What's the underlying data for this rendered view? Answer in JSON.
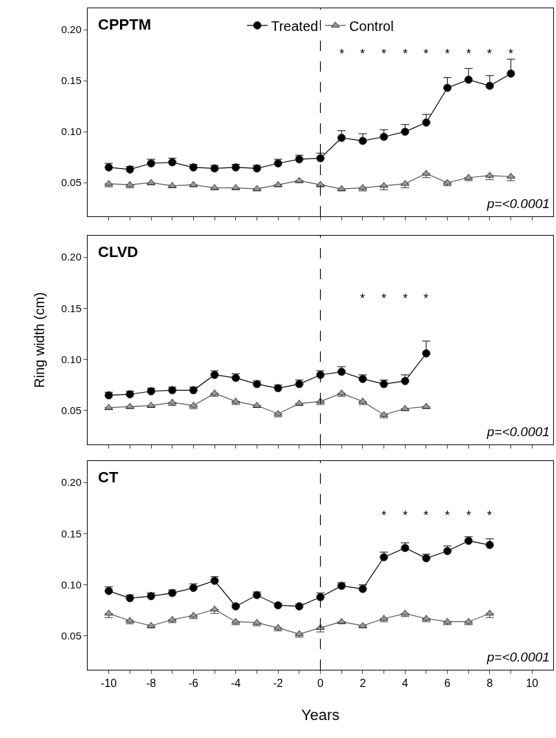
{
  "chart_data": [
    {
      "type": "line",
      "title": "CPPTM",
      "x": [
        -10,
        -9,
        -8,
        -7,
        -6,
        -5,
        -4,
        -3,
        -2,
        -1,
        0,
        1,
        2,
        3,
        4,
        5,
        6,
        7,
        8,
        9
      ],
      "xlim": [
        -11,
        11
      ],
      "ylim": [
        0.017,
        0.221
      ],
      "legend": "top",
      "tick_labels": "y",
      "xticks": [
        {
          "value": -10,
          "label": null
        },
        {
          "value": -9,
          "label": null
        },
        {
          "value": -8,
          "label": null
        },
        {
          "value": -7,
          "label": null
        },
        {
          "value": -6,
          "label": null
        },
        {
          "value": -5,
          "label": null
        },
        {
          "value": -4,
          "label": null
        },
        {
          "value": -3,
          "label": null
        },
        {
          "value": -2,
          "label": null
        },
        {
          "value": -1,
          "label": null
        },
        {
          "value": 0,
          "label": null
        },
        {
          "value": 1,
          "label": null
        },
        {
          "value": 2,
          "label": null
        },
        {
          "value": 3,
          "label": null
        },
        {
          "value": 4,
          "label": null
        },
        {
          "value": 5,
          "label": null
        },
        {
          "value": 6,
          "label": null
        },
        {
          "value": 7,
          "label": null
        },
        {
          "value": 8,
          "label": null
        },
        {
          "value": 9,
          "label": null
        },
        {
          "value": 10,
          "label": null
        }
      ],
      "yticks": [
        {
          "value": 0.05,
          "label": "0.05"
        },
        {
          "value": 0.1,
          "label": "0.10"
        },
        {
          "value": 0.15,
          "label": "0.15"
        },
        {
          "value": 0.2,
          "label": "0.20"
        }
      ],
      "ref_lines": [
        {
          "axis": "x",
          "value": 0,
          "line_style": "dashed",
          "color": "#000000"
        }
      ],
      "series": [
        {
          "name": "Treated",
          "color": "#000000",
          "marker": "circle",
          "values": [
            0.065,
            0.063,
            0.069,
            0.07,
            0.065,
            0.064,
            0.065,
            0.064,
            0.069,
            0.073,
            0.074,
            0.094,
            0.091,
            0.095,
            0.1,
            0.109,
            0.143,
            0.151,
            0.145,
            0.157
          ],
          "errors": [
            [
              0.065,
              0.069
            ],
            [
              0.063,
              0.066
            ],
            [
              0.069,
              0.073
            ],
            [
              0.07,
              0.074
            ],
            [
              0.065,
              0.068
            ],
            [
              0.064,
              0.067
            ],
            [
              0.065,
              0.068
            ],
            [
              0.064,
              0.067
            ],
            [
              0.069,
              0.073
            ],
            [
              0.073,
              0.077
            ],
            [
              0.074,
              0.079
            ],
            [
              0.094,
              0.101
            ],
            [
              0.091,
              0.098
            ],
            [
              0.095,
              0.102
            ],
            [
              0.1,
              0.107
            ],
            [
              0.109,
              0.117
            ],
            [
              0.143,
              0.153
            ],
            [
              0.151,
              0.162
            ],
            [
              0.145,
              0.155
            ],
            [
              0.157,
              0.171
            ]
          ]
        },
        {
          "name": "Control",
          "color": "#999999",
          "marker": "triangle",
          "values": [
            0.049,
            0.048,
            0.05,
            0.047,
            0.048,
            0.045,
            0.045,
            0.044,
            0.048,
            0.052,
            0.048,
            0.044,
            0.045,
            0.047,
            0.049,
            0.059,
            0.05,
            0.055,
            0.057,
            0.056
          ],
          "errors": [
            [
              0.046,
              0.049
            ],
            [
              0.045,
              0.048
            ],
            [
              0.048,
              0.05
            ],
            [
              0.045,
              0.047
            ],
            [
              0.046,
              0.048
            ],
            [
              0.043,
              0.045
            ],
            [
              0.043,
              0.045
            ],
            [
              0.042,
              0.044
            ],
            [
              0.046,
              0.048
            ],
            [
              0.05,
              0.052
            ],
            [
              0.046,
              0.048
            ],
            [
              0.042,
              0.044
            ],
            [
              0.042,
              0.045
            ],
            [
              0.043,
              0.047
            ],
            [
              0.045,
              0.049
            ],
            [
              0.055,
              0.059
            ],
            [
              0.047,
              0.05
            ],
            [
              0.052,
              0.055
            ],
            [
              0.053,
              0.057
            ],
            [
              0.052,
              0.056
            ]
          ]
        }
      ],
      "annotations": [
        "*",
        "*",
        "*",
        "*",
        "*",
        "*",
        "*",
        "*",
        "*",
        "p=<0.0001"
      ]
    },
    {
      "type": "line",
      "title": "CLVD",
      "ylabel": "Ring width (cm)",
      "x": [
        -10,
        -9,
        -8,
        -7,
        -6,
        -5,
        -4,
        -3,
        -2,
        -1,
        0,
        1,
        2,
        3,
        4,
        5
      ],
      "xlim": [
        -11,
        11
      ],
      "ylim": [
        0.017,
        0.221
      ],
      "tick_labels": "y",
      "xticks": [
        {
          "value": -10,
          "label": null
        },
        {
          "value": -9,
          "label": null
        },
        {
          "value": -8,
          "label": null
        },
        {
          "value": -7,
          "label": null
        },
        {
          "value": -6,
          "label": null
        },
        {
          "value": -5,
          "label": null
        },
        {
          "value": -4,
          "label": null
        },
        {
          "value": -3,
          "label": null
        },
        {
          "value": -2,
          "label": null
        },
        {
          "value": -1,
          "label": null
        },
        {
          "value": 0,
          "label": null
        },
        {
          "value": 1,
          "label": null
        },
        {
          "value": 2,
          "label": null
        },
        {
          "value": 3,
          "label": null
        },
        {
          "value": 4,
          "label": null
        },
        {
          "value": 5,
          "label": null
        },
        {
          "value": 6,
          "label": null
        },
        {
          "value": 7,
          "label": null
        },
        {
          "value": 8,
          "label": null
        },
        {
          "value": 9,
          "label": null
        },
        {
          "value": 10,
          "label": null
        }
      ],
      "yticks": [
        {
          "value": 0.05,
          "label": "0.05"
        },
        {
          "value": 0.1,
          "label": "0.10"
        },
        {
          "value": 0.15,
          "label": "0.15"
        },
        {
          "value": 0.2,
          "label": "0.20"
        }
      ],
      "ref_lines": [
        {
          "axis": "x",
          "value": 0,
          "line_style": "dashed",
          "color": "#000000"
        }
      ],
      "series": [
        {
          "color": "#000000",
          "marker": "circle",
          "values": [
            0.065,
            0.066,
            0.069,
            0.07,
            0.07,
            0.085,
            0.082,
            0.076,
            0.072,
            0.076,
            0.085,
            0.088,
            0.081,
            0.076,
            0.079,
            0.106
          ],
          "errors": [
            [
              0.065,
              0.068
            ],
            [
              0.066,
              0.069
            ],
            [
              0.069,
              0.072
            ],
            [
              0.07,
              0.073
            ],
            [
              0.07,
              0.073
            ],
            [
              0.085,
              0.089
            ],
            [
              0.082,
              0.086
            ],
            [
              0.076,
              0.079
            ],
            [
              0.072,
              0.075
            ],
            [
              0.076,
              0.08
            ],
            [
              0.085,
              0.089
            ],
            [
              0.088,
              0.093
            ],
            [
              0.081,
              0.085
            ],
            [
              0.076,
              0.08
            ],
            [
              0.079,
              0.085
            ],
            [
              0.106,
              0.118
            ]
          ]
        },
        {
          "color": "#999999",
          "marker": "triangle",
          "values": [
            0.053,
            0.054,
            0.055,
            0.058,
            0.055,
            0.067,
            0.059,
            0.055,
            0.047,
            0.057,
            0.059,
            0.067,
            0.059,
            0.046,
            0.052,
            0.054
          ],
          "errors": [
            [
              0.051,
              0.053
            ],
            [
              0.052,
              0.054
            ],
            [
              0.053,
              0.055
            ],
            [
              0.055,
              0.058
            ],
            [
              0.052,
              0.055
            ],
            [
              0.064,
              0.067
            ],
            [
              0.056,
              0.059
            ],
            [
              0.053,
              0.055
            ],
            [
              0.044,
              0.047
            ],
            [
              0.055,
              0.057
            ],
            [
              0.056,
              0.059
            ],
            [
              0.064,
              0.067
            ],
            [
              0.056,
              0.059
            ],
            [
              0.043,
              0.046
            ],
            [
              0.05,
              0.052
            ],
            [
              0.052,
              0.054
            ]
          ]
        }
      ],
      "annotations": [
        "*",
        "*",
        "*",
        "*",
        "p=<0.0001"
      ]
    },
    {
      "type": "line",
      "title": "CT",
      "xlabel": "Years",
      "x": [
        -10,
        -9,
        -8,
        -7,
        -6,
        -5,
        -4,
        -3,
        -2,
        -1,
        0,
        1,
        2,
        3,
        4,
        5,
        6,
        7,
        8
      ],
      "xlim": [
        -11,
        11
      ],
      "ylim": [
        0.017,
        0.221
      ],
      "xticks": [
        -10,
        {
          "value": -9,
          "label": null
        },
        -8,
        {
          "value": -7,
          "label": null
        },
        -6,
        {
          "value": -5,
          "label": null
        },
        -4,
        {
          "value": -3,
          "label": null
        },
        -2,
        {
          "value": -1,
          "label": null
        },
        0,
        {
          "value": 1,
          "label": null
        },
        2,
        {
          "value": 3,
          "label": null
        },
        4,
        {
          "value": 5,
          "label": null
        },
        6,
        {
          "value": 7,
          "label": null
        },
        8,
        {
          "value": 9,
          "label": null
        },
        10
      ],
      "yticks": [
        {
          "value": 0.05,
          "label": "0.05"
        },
        {
          "value": 0.1,
          "label": "0.10"
        },
        {
          "value": 0.15,
          "label": "0.15"
        },
        {
          "value": 0.2,
          "label": "0.20"
        }
      ],
      "ref_lines": [
        {
          "axis": "x",
          "value": 0,
          "line_style": "dashed",
          "color": "#000000"
        }
      ],
      "series": [
        {
          "color": "#000000",
          "marker": "circle",
          "values": [
            0.094,
            0.087,
            0.089,
            0.092,
            0.097,
            0.104,
            0.079,
            0.09,
            0.08,
            0.079,
            0.088,
            0.099,
            0.096,
            0.127,
            0.136,
            0.126,
            0.133,
            0.143,
            0.139
          ],
          "errors": [
            [
              0.094,
              0.098
            ],
            [
              0.087,
              0.09
            ],
            [
              0.089,
              0.092
            ],
            [
              0.092,
              0.095
            ],
            [
              0.097,
              0.101
            ],
            [
              0.104,
              0.108
            ],
            [
              0.079,
              0.081
            ],
            [
              0.09,
              0.093
            ],
            [
              0.08,
              0.082
            ],
            [
              0.079,
              0.081
            ],
            [
              0.088,
              0.092
            ],
            [
              0.099,
              0.102
            ],
            [
              0.096,
              0.1
            ],
            [
              0.127,
              0.132
            ],
            [
              0.136,
              0.141
            ],
            [
              0.126,
              0.13
            ],
            [
              0.133,
              0.138
            ],
            [
              0.143,
              0.147
            ],
            [
              0.139,
              0.145
            ]
          ]
        },
        {
          "color": "#999999",
          "marker": "triangle",
          "values": [
            0.072,
            0.065,
            0.06,
            0.066,
            0.07,
            0.076,
            0.064,
            0.063,
            0.058,
            0.052,
            0.058,
            0.064,
            0.06,
            0.067,
            0.072,
            0.067,
            0.064,
            0.064,
            0.072
          ],
          "errors": [
            [
              0.068,
              0.072
            ],
            [
              0.062,
              0.065
            ],
            [
              0.058,
              0.06
            ],
            [
              0.063,
              0.066
            ],
            [
              0.067,
              0.07
            ],
            [
              0.072,
              0.076
            ],
            [
              0.061,
              0.064
            ],
            [
              0.06,
              0.063
            ],
            [
              0.055,
              0.058
            ],
            [
              0.049,
              0.052
            ],
            [
              0.054,
              0.058
            ],
            [
              0.062,
              0.064
            ],
            [
              0.058,
              0.06
            ],
            [
              0.064,
              0.067
            ],
            [
              0.069,
              0.072
            ],
            [
              0.064,
              0.067
            ],
            [
              0.061,
              0.064
            ],
            [
              0.061,
              0.064
            ],
            [
              0.068,
              0.072
            ]
          ]
        }
      ],
      "annotations": [
        "*",
        "*",
        "*",
        "*",
        "*",
        "*",
        "p=<0.0001"
      ]
    }
  ]
}
